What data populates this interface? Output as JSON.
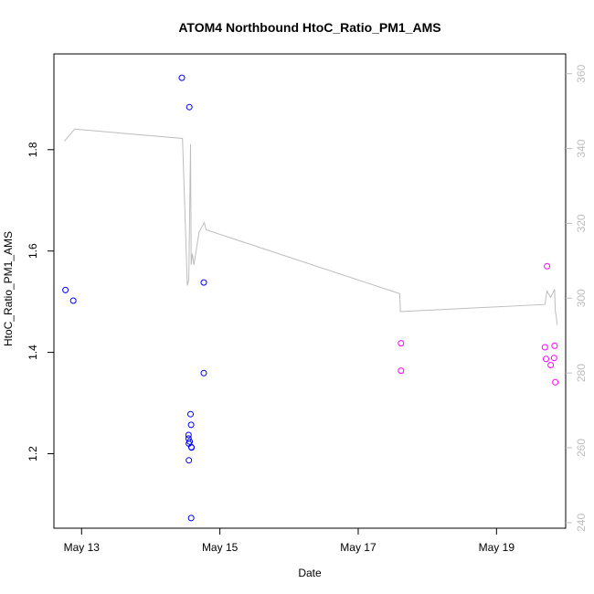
{
  "chart_data": {
    "type": "scatter",
    "title": "ATOM4 Northbound HtoC_Ratio_PM1_AMS",
    "xlabel": "Date",
    "ylabel": "HtoC_Ratio_PM1_AMS",
    "x_ticks": [
      "May 13",
      "May 15",
      "May 17",
      "May 19"
    ],
    "y_ticks": [
      "1.2",
      "1.4",
      "1.6",
      "1.8"
    ],
    "y2_ticks": [
      "240",
      "260",
      "280",
      "300",
      "320",
      "340",
      "360"
    ],
    "xlim": [
      "2024-05-12T14:24",
      "2024-05-20T00:00"
    ],
    "ylim": [
      1.053,
      1.989
    ],
    "y2lim": [
      238.5,
      365.3
    ],
    "grid": false,
    "colors": {
      "blue_points": "#0000ff",
      "magenta_points": "#ff00ff",
      "right_axis_line": "#bdbdbd",
      "right_axis_ticks": "#bdbdbd"
    },
    "series": [
      {
        "marker": "circle-open",
        "color": "#0000ff",
        "points": [
          {
            "x": "2024-05-12T18:24",
            "y": 1.523
          },
          {
            "x": "2024-05-12T21:07",
            "y": 1.502
          },
          {
            "x": "2024-05-14T10:48",
            "y": 1.942
          },
          {
            "x": "2024-05-14T13:24",
            "y": 1.884
          },
          {
            "x": "2024-05-14T13:07",
            "y": 1.237
          },
          {
            "x": "2024-05-14T13:07",
            "y": 1.23
          },
          {
            "x": "2024-05-14T13:12",
            "y": 1.22
          },
          {
            "x": "2024-05-14T13:31",
            "y": 1.224
          },
          {
            "x": "2024-05-14T14:05",
            "y": 1.213
          },
          {
            "x": "2024-05-14T14:10",
            "y": 1.212
          },
          {
            "x": "2024-05-14T13:14",
            "y": 1.187
          },
          {
            "x": "2024-05-14T14:01",
            "y": 1.257
          },
          {
            "x": "2024-05-14T13:48",
            "y": 1.278
          },
          {
            "x": "2024-05-14T18:24",
            "y": 1.538
          },
          {
            "x": "2024-05-14T18:24",
            "y": 1.359
          },
          {
            "x": "2024-05-14T14:02",
            "y": 1.073
          }
        ]
      },
      {
        "marker": "circle-open",
        "color": "#ff00ff",
        "points": [
          {
            "x": "2024-05-17T14:52",
            "y": 1.418
          },
          {
            "x": "2024-05-17T14:52",
            "y": 1.364
          },
          {
            "x": "2024-05-19T17:31",
            "y": 1.57
          },
          {
            "x": "2024-05-19T16:48",
            "y": 1.41
          },
          {
            "x": "2024-05-19T17:10",
            "y": 1.387
          },
          {
            "x": "2024-05-19T18:48",
            "y": 1.375
          },
          {
            "x": "2024-05-19T19:58",
            "y": 1.389
          },
          {
            "x": "2024-05-19T20:10",
            "y": 1.413
          },
          {
            "x": "2024-05-19T20:24",
            "y": 1.341
          }
        ]
      }
    ],
    "right_axis_line": {
      "axis": "y2",
      "color": "#bdbdbd",
      "points": [
        {
          "x": "2024-05-12T18:00",
          "y2": 342.0
        },
        {
          "x": "2024-05-12T21:36",
          "y2": 345.2
        },
        {
          "x": "2024-05-14T11:02",
          "y2": 342.7
        },
        {
          "x": "2024-05-14T12:43",
          "y2": 303.4
        },
        {
          "x": "2024-05-14T13:12",
          "y2": 305.0
        },
        {
          "x": "2024-05-14T13:48",
          "y2": 341.2
        },
        {
          "x": "2024-05-14T14:02",
          "y2": 308.9
        },
        {
          "x": "2024-05-14T14:24",
          "y2": 311.9
        },
        {
          "x": "2024-05-14T15:00",
          "y2": 308.9
        },
        {
          "x": "2024-05-14T16:48",
          "y2": 317.7
        },
        {
          "x": "2024-05-14T18:36",
          "y2": 320.2
        },
        {
          "x": "2024-05-14T19:12",
          "y2": 318.3
        },
        {
          "x": "2024-05-17T14:24",
          "y2": 301.2
        },
        {
          "x": "2024-05-17T14:38",
          "y2": 296.4
        },
        {
          "x": "2024-05-19T16:48",
          "y2": 298.3
        },
        {
          "x": "2024-05-19T17:31",
          "y2": 301.9
        },
        {
          "x": "2024-05-19T18:48",
          "y2": 300.2
        },
        {
          "x": "2024-05-19T20:10",
          "y2": 302.4
        },
        {
          "x": "2024-05-19T20:24",
          "y2": 296.8
        },
        {
          "x": "2024-05-19T20:53",
          "y2": 294.2
        },
        {
          "x": "2024-05-19T21:00",
          "y2": 292.9
        }
      ]
    }
  }
}
